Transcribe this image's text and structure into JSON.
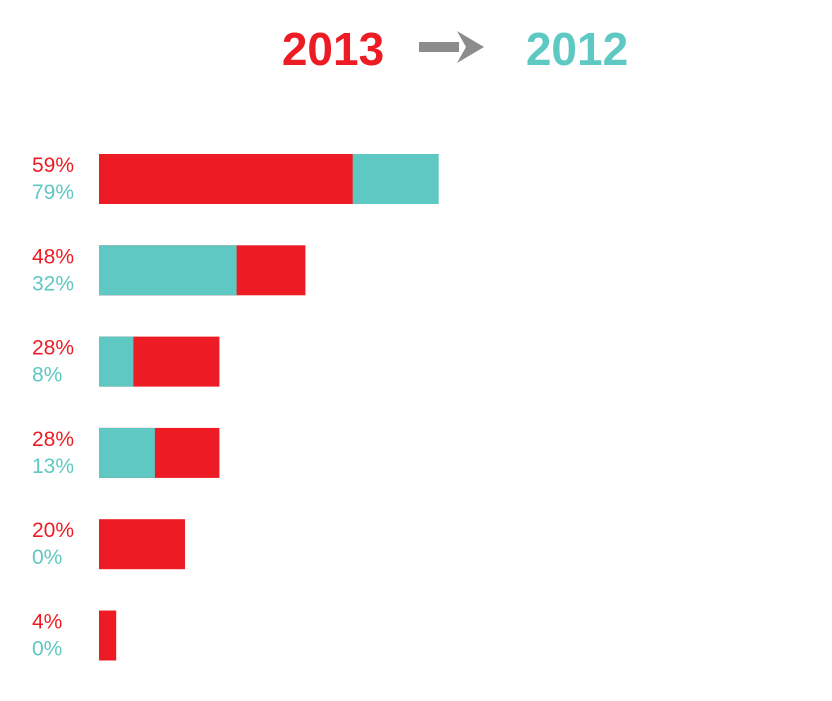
{
  "colors": {
    "year_2013": "#ed1c24",
    "year_2012": "#5ec8c2",
    "arrow": "#8c8c8c",
    "background": "#ffffff"
  },
  "legend": {
    "from_label": "2013",
    "to_label": "2012",
    "arrow_icon": "right-arrow-icon"
  },
  "chart_data": {
    "type": "bar",
    "orientation": "horizontal",
    "overlap": true,
    "xlim": [
      0,
      100
    ],
    "grid": false,
    "series": [
      {
        "name": "2013",
        "color": "#ed1c24",
        "values": [
          59,
          48,
          28,
          28,
          20,
          4
        ],
        "labels": [
          "59%",
          "48%",
          "28%",
          "28%",
          "20%",
          "4%"
        ]
      },
      {
        "name": "2012",
        "color": "#5ec8c2",
        "values": [
          79,
          32,
          8,
          13,
          0,
          0
        ],
        "labels": [
          "79%",
          "32%",
          "8%",
          "13%",
          "0%",
          "0%"
        ]
      }
    ]
  }
}
